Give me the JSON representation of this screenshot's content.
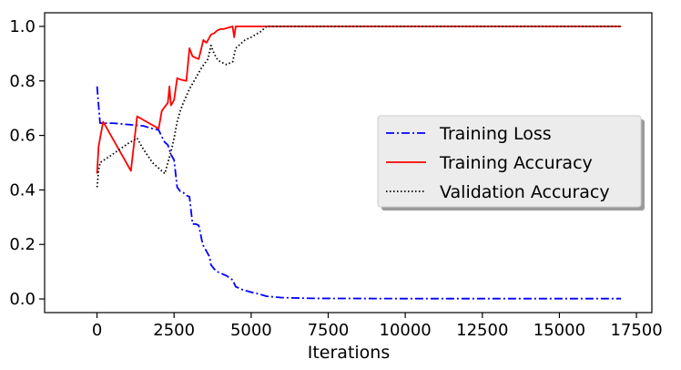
{
  "chart_data": {
    "type": "line",
    "title": "",
    "xlabel": "Iterations",
    "ylabel": "",
    "xlim": [
      -1700,
      18000
    ],
    "ylim": [
      -0.05,
      1.05
    ],
    "xticks": [
      0,
      2500,
      5000,
      7500,
      10000,
      12500,
      15000,
      17500
    ],
    "yticks": [
      0.0,
      0.2,
      0.4,
      0.6,
      0.8,
      1.0
    ],
    "xtick_labels": [
      "0",
      "2500",
      "5000",
      "7500",
      "10000",
      "12500",
      "15000",
      "17500"
    ],
    "ytick_labels": [
      "0.0",
      "0.2",
      "0.4",
      "0.6",
      "0.8",
      "1.0"
    ],
    "legend_position": "center-right",
    "series": [
      {
        "name": "Training Loss",
        "color": "#0000ff",
        "style": "dashdot",
        "x": [
          0,
          50,
          100,
          500,
          1000,
          1500,
          1800,
          2000,
          2100,
          2200,
          2300,
          2400,
          2500,
          2600,
          2700,
          2800,
          2900,
          3000,
          3050,
          3100,
          3200,
          3300,
          3400,
          3450,
          3550,
          3650,
          3700,
          3800,
          3900,
          4000,
          4200,
          4400,
          4500,
          4700,
          5000,
          5200,
          5500,
          6000,
          7000,
          10000,
          17000
        ],
        "values": [
          0.78,
          0.71,
          0.645,
          0.645,
          0.64,
          0.635,
          0.625,
          0.62,
          0.595,
          0.575,
          0.565,
          0.53,
          0.51,
          0.41,
          0.395,
          0.39,
          0.38,
          0.375,
          0.325,
          0.275,
          0.275,
          0.27,
          0.215,
          0.195,
          0.175,
          0.155,
          0.125,
          0.11,
          0.1,
          0.095,
          0.085,
          0.07,
          0.045,
          0.035,
          0.025,
          0.02,
          0.01,
          0.005,
          0.002,
          0.001,
          0.001
        ]
      },
      {
        "name": "Training Accuracy",
        "color": "#ff0000",
        "style": "solid",
        "x": [
          0,
          50,
          200,
          1100,
          1300,
          2000,
          2100,
          2300,
          2350,
          2400,
          2450,
          2500,
          2600,
          2700,
          2900,
          3000,
          3100,
          3300,
          3450,
          3550,
          3700,
          3800,
          3900,
          4000,
          4100,
          4400,
          4450,
          4500,
          5000,
          17000
        ],
        "values": [
          0.46,
          0.56,
          0.65,
          0.47,
          0.67,
          0.625,
          0.69,
          0.72,
          0.78,
          0.71,
          0.72,
          0.73,
          0.81,
          0.805,
          0.8,
          0.92,
          0.89,
          0.88,
          0.95,
          0.94,
          0.97,
          0.975,
          0.985,
          0.99,
          0.99,
          1.0,
          0.96,
          1.0,
          1.0,
          1.0
        ]
      },
      {
        "name": "Validation Accuracy",
        "color": "#000000",
        "style": "dotted",
        "x": [
          0,
          50,
          100,
          500,
          1000,
          1300,
          1500,
          1800,
          2000,
          2200,
          2300,
          2400,
          2500,
          2600,
          2700,
          2800,
          3000,
          3200,
          3400,
          3600,
          3700,
          3800,
          3900,
          4000,
          4200,
          4400,
          4500,
          4800,
          5000,
          5300,
          5500,
          6000,
          17000
        ],
        "values": [
          0.41,
          0.47,
          0.5,
          0.53,
          0.57,
          0.59,
          0.55,
          0.5,
          0.48,
          0.46,
          0.5,
          0.54,
          0.59,
          0.65,
          0.69,
          0.72,
          0.77,
          0.81,
          0.85,
          0.88,
          0.93,
          0.9,
          0.88,
          0.87,
          0.86,
          0.87,
          0.92,
          0.95,
          0.96,
          0.98,
          1.0,
          1.0,
          1.0
        ]
      }
    ]
  }
}
